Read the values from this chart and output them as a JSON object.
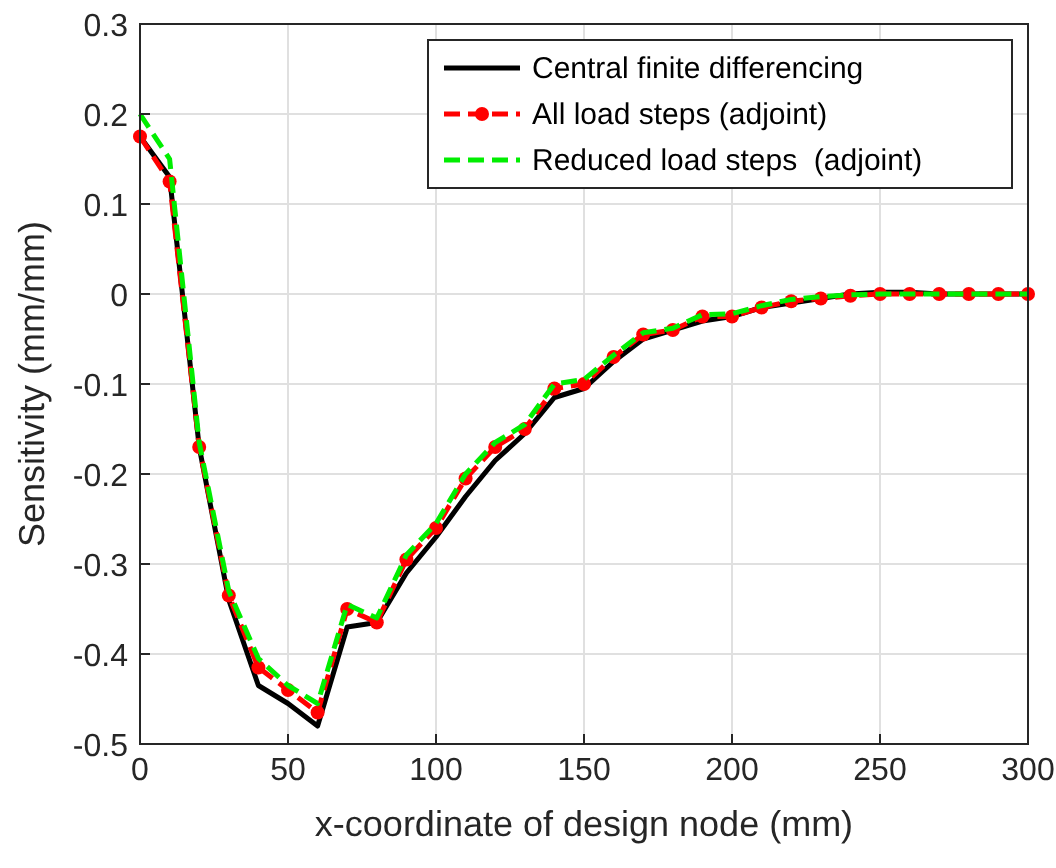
{
  "chart_data": {
    "type": "line",
    "xlabel": "x-coordinate of design node (mm)",
    "ylabel": "Sensitivity (mm/mm)",
    "x": [
      0,
      10,
      20,
      30,
      40,
      50,
      60,
      70,
      80,
      90,
      100,
      110,
      120,
      130,
      140,
      150,
      160,
      170,
      180,
      190,
      200,
      210,
      220,
      230,
      240,
      250,
      260,
      270,
      280,
      290,
      300
    ],
    "series": [
      {
        "name": "Central finite differencing",
        "color": "#000000",
        "line_style": "solid",
        "marker": "none",
        "values": [
          0.175,
          0.13,
          -0.17,
          -0.34,
          -0.435,
          -0.455,
          -0.48,
          -0.37,
          -0.365,
          -0.31,
          -0.27,
          -0.225,
          -0.185,
          -0.155,
          -0.115,
          -0.105,
          -0.075,
          -0.05,
          -0.04,
          -0.03,
          -0.025,
          -0.015,
          -0.01,
          -0.005,
          0,
          0.002,
          0.002,
          0,
          0,
          0,
          0
        ]
      },
      {
        "name": "All load steps (adjoint)",
        "color": "#ff0000",
        "line_style": "dashed",
        "marker": "circle",
        "values": [
          0.175,
          0.125,
          -0.17,
          -0.335,
          -0.415,
          -0.44,
          -0.465,
          -0.35,
          -0.365,
          -0.295,
          -0.26,
          -0.205,
          -0.17,
          -0.15,
          -0.105,
          -0.1,
          -0.07,
          -0.045,
          -0.04,
          -0.025,
          -0.025,
          -0.015,
          -0.008,
          -0.005,
          -0.002,
          0,
          0,
          0,
          0,
          0,
          0
        ]
      },
      {
        "name": "Reduced load steps  (adjoint)",
        "color": "#00ee00",
        "line_style": "dashed",
        "marker": "none",
        "values": [
          0.2,
          0.15,
          -0.165,
          -0.33,
          -0.405,
          -0.435,
          -0.455,
          -0.345,
          -0.36,
          -0.29,
          -0.255,
          -0.2,
          -0.165,
          -0.145,
          -0.1,
          -0.095,
          -0.068,
          -0.043,
          -0.038,
          -0.023,
          -0.022,
          -0.013,
          -0.006,
          -0.003,
          -0.001,
          0,
          0,
          0,
          0,
          0,
          0
        ]
      }
    ],
    "xlim": [
      0,
      300
    ],
    "xticks": [
      0,
      50,
      100,
      150,
      200,
      250,
      300
    ],
    "ylim": [
      -0.5,
      0.3
    ],
    "yticks": [
      -0.5,
      -0.4,
      -0.3,
      -0.2,
      -0.1,
      0,
      0.1,
      0.2,
      0.3
    ],
    "grid": true,
    "legend": "top right"
  }
}
